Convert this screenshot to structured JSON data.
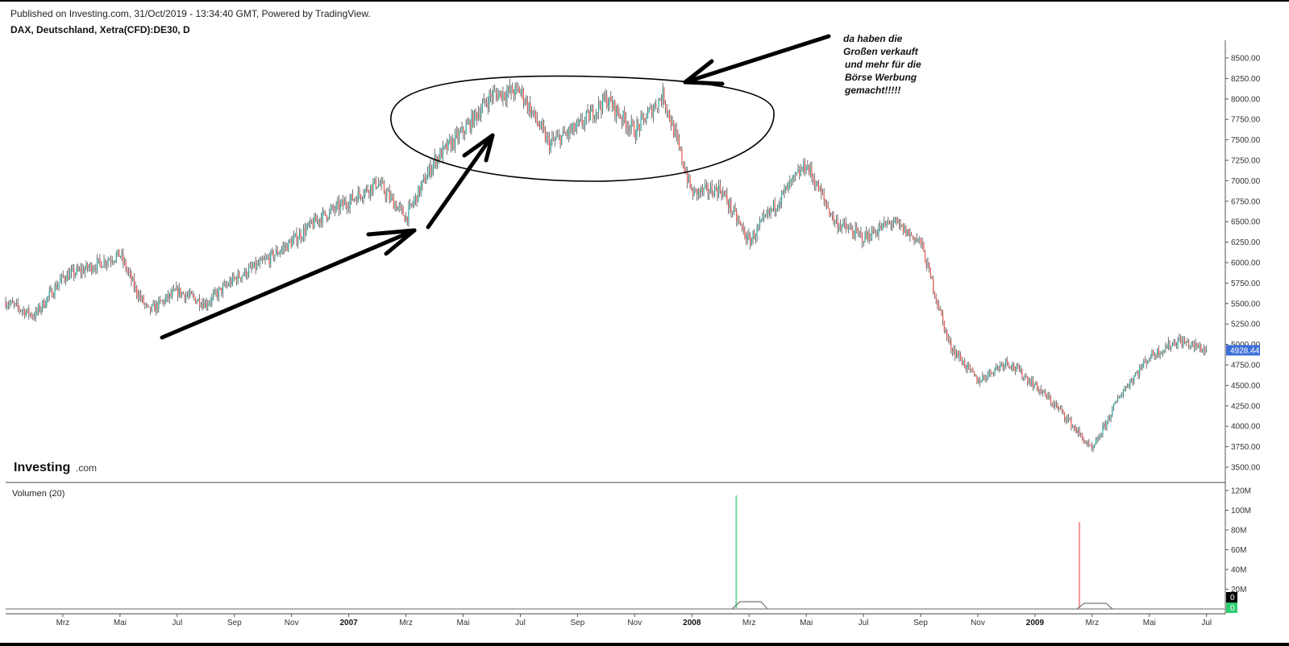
{
  "header": {
    "published": "Published on Investing.com, 31/Oct/2019 - 13:34:40 GMT, Powered by TradingView.",
    "symbol": "DAX, Deutschland, Xetra(CFD):DE30, D"
  },
  "logo": {
    "main": "Investing",
    "sub": ".com"
  },
  "annotation_lines": [
    "da haben die",
    "Großen verkauft",
    "und mehr für die",
    "Börse Werbung",
    "gemacht!!!!!"
  ],
  "colors": {
    "up": "#26a69a",
    "down": "#ef5350",
    "price_badge": "#3d6fd9",
    "vol_badge_up": "#2ecc71",
    "vol_badge_dark": "#000000"
  },
  "chart_data": [
    {
      "type": "candlestick",
      "title": "",
      "x_tick_labels": [
        "Mrz",
        "Mai",
        "Jul",
        "Sep",
        "Nov",
        "2007",
        "Mrz",
        "Mai",
        "Jul",
        "Sep",
        "Nov",
        "2008",
        "Mrz",
        "Mai",
        "Jul",
        "Sep",
        "Nov",
        "2009",
        "Mrz",
        "Mai",
        "Jul"
      ],
      "x_tick_bold": [
        "2007",
        "2008",
        "2009"
      ],
      "y_tick_labels": [
        "8500.00",
        "8250.00",
        "8000.00",
        "7750.00",
        "7500.00",
        "7250.00",
        "7000.00",
        "6750.00",
        "6500.00",
        "6250.00",
        "6000.00",
        "5750.00",
        "5500.00",
        "5250.00",
        "5000.00",
        "4750.00",
        "4500.00",
        "4250.00",
        "4000.00",
        "3750.00",
        "3500.00"
      ],
      "ylim": [
        3400,
        8750
      ],
      "x_range": [
        "2006-01",
        "2009-07"
      ],
      "last_price": "4928.44",
      "close_path": [
        [
          "2006-01",
          5520
        ],
        [
          "2006-02",
          5350
        ],
        [
          "2006-03",
          5820
        ],
        [
          "2006-04",
          5950
        ],
        [
          "2006-05",
          6100
        ],
        [
          "2006-05",
          5700
        ],
        [
          "2006-06",
          5400
        ],
        [
          "2006-07",
          5650
        ],
        [
          "2006-08",
          5500
        ],
        [
          "2006-09",
          5800
        ],
        [
          "2006-10",
          6000
        ],
        [
          "2006-11",
          6250
        ],
        [
          "2006-12",
          6550
        ],
        [
          "2007-01",
          6750
        ],
        [
          "2007-02",
          6980
        ],
        [
          "2007-03",
          6550
        ],
        [
          "2007-04",
          7250
        ],
        [
          "2007-05",
          7600
        ],
        [
          "2007-06",
          8050
        ],
        [
          "2007-07",
          8100
        ],
        [
          "2007-08",
          7450
        ],
        [
          "2007-09",
          7650
        ],
        [
          "2007-10",
          8000
        ],
        [
          "2007-11",
          7600
        ],
        [
          "2007-12",
          8050
        ],
        [
          "2008-01",
          6850
        ],
        [
          "2008-02",
          6900
        ],
        [
          "2008-03",
          6250
        ],
        [
          "2008-04",
          6750
        ],
        [
          "2008-05",
          7200
        ],
        [
          "2008-06",
          6500
        ],
        [
          "2008-07",
          6300
        ],
        [
          "2008-08",
          6500
        ],
        [
          "2008-09",
          6250
        ],
        [
          "2008-10",
          5000
        ],
        [
          "2008-11",
          4550
        ],
        [
          "2008-12",
          4800
        ],
        [
          "2009-01",
          4500
        ],
        [
          "2009-02",
          4150
        ],
        [
          "2009-03",
          3700
        ],
        [
          "2009-04",
          4400
        ],
        [
          "2009-05",
          4850
        ],
        [
          "2009-06",
          5050
        ],
        [
          "2009-07",
          4928
        ]
      ]
    },
    {
      "type": "bar",
      "title": "Volumen (20)",
      "y_tick_labels": [
        "120M",
        "100M",
        "80M",
        "60M",
        "40M",
        "20M"
      ],
      "ylim": [
        0,
        120
      ],
      "spikes": [
        {
          "x": "2008-02",
          "value": 115,
          "direction": "up"
        },
        {
          "x": "2009-02",
          "value": 88,
          "direction": "down"
        }
      ],
      "badges": [
        "0",
        "0"
      ]
    }
  ]
}
